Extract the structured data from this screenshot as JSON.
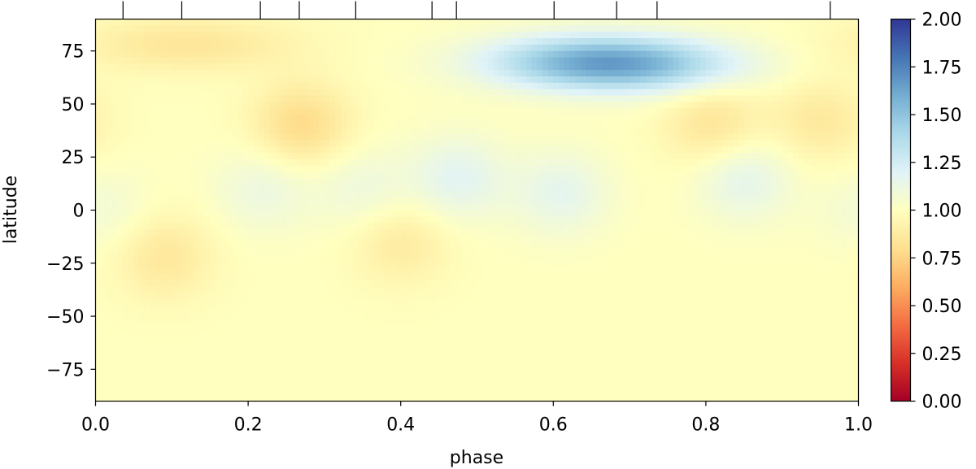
{
  "chart_data": {
    "type": "heatmap",
    "title": "",
    "xlabel": "phase",
    "ylabel": "latitude",
    "xlim": [
      0.0,
      1.0
    ],
    "ylim": [
      -90,
      90
    ],
    "x_ticks": [
      "0.0",
      "0.2",
      "0.4",
      "0.6",
      "0.8",
      "1.0"
    ],
    "y_ticks": [
      "75",
      "50",
      "25",
      "0",
      "−25",
      "−50",
      "−75"
    ],
    "observation_phases": [
      0.036,
      0.113,
      0.216,
      0.267,
      0.341,
      0.441,
      0.473,
      0.601,
      0.683,
      0.736,
      0.963
    ],
    "colorbar": {
      "range": [
        0.0,
        2.0
      ],
      "ticks": [
        "0.00",
        "0.25",
        "0.50",
        "0.75",
        "1.00",
        "1.25",
        "1.50",
        "1.75",
        "2.00"
      ],
      "colormap": "RdYlBu",
      "colors": [
        "#a50026",
        "#d73027",
        "#f46d43",
        "#fdae61",
        "#fee090",
        "#ffffbf",
        "#e0f3f8",
        "#abd9e9",
        "#74add1",
        "#4575b4",
        "#313695"
      ]
    },
    "baseline_value": 1.0,
    "features": [
      {
        "phase": 0.64,
        "latitude": 70,
        "value": 1.42
      },
      {
        "phase": 0.72,
        "latitude": 68,
        "value": 1.32
      },
      {
        "phase": 0.27,
        "latitude": 40,
        "value": 0.78
      },
      {
        "phase": 0.12,
        "latitude": 78,
        "value": 0.84
      },
      {
        "phase": 0.81,
        "latitude": 40,
        "value": 0.83
      },
      {
        "phase": 0.95,
        "latitude": 42,
        "value": 0.86
      },
      {
        "phase": 0.09,
        "latitude": -22,
        "value": 0.85
      },
      {
        "phase": 0.4,
        "latitude": -15,
        "value": 0.87
      },
      {
        "phase": 0.22,
        "latitude": 10,
        "value": 1.12
      },
      {
        "phase": 0.35,
        "latitude": 10,
        "value": 1.11
      },
      {
        "phase": 0.475,
        "latitude": 15,
        "value": 1.18
      },
      {
        "phase": 0.61,
        "latitude": 8,
        "value": 1.16
      },
      {
        "phase": 0.85,
        "latitude": 15,
        "value": 1.17
      },
      {
        "phase": 0.01,
        "latitude": 0,
        "value": 1.08
      }
    ]
  }
}
